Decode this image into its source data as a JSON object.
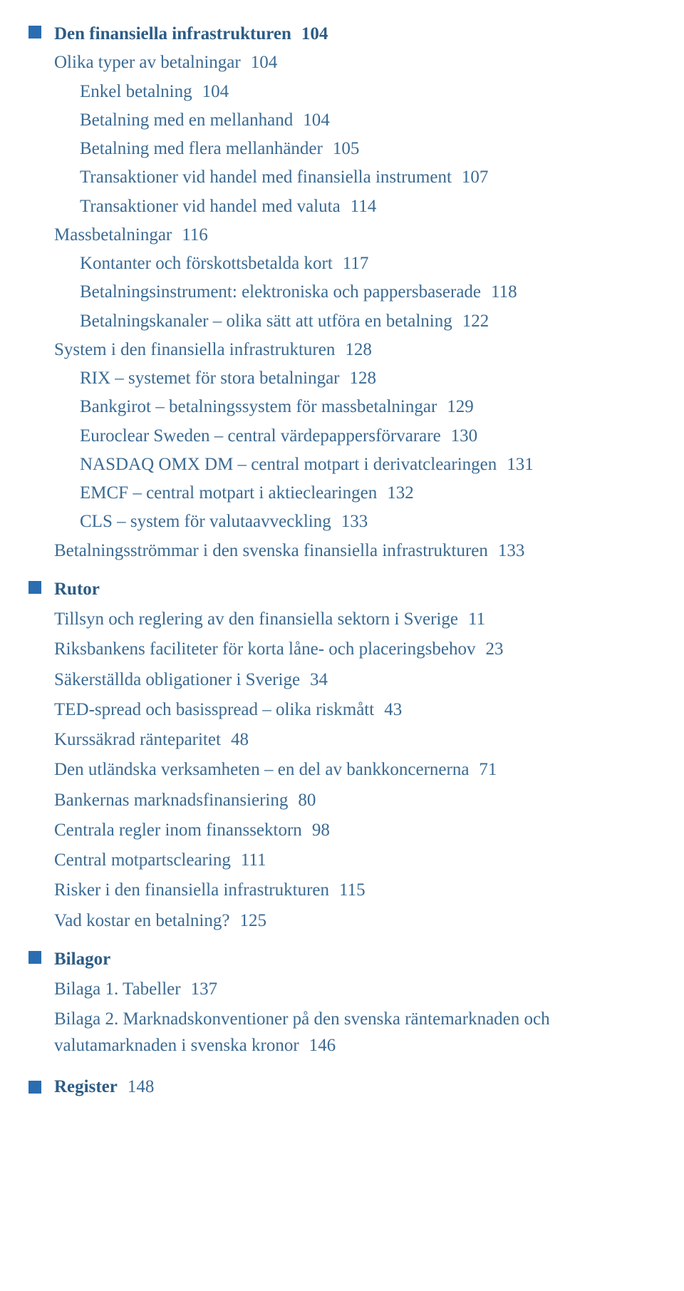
{
  "colors": {
    "text": "#3a6a93",
    "heading": "#2d5c85",
    "bullet": "#2a6db0",
    "background": "#ffffff"
  },
  "typography": {
    "font_family": "Georgia, serif",
    "body_fontsize_pt": 19,
    "heading_fontsize_pt": 19,
    "heading_weight": 600,
    "line_height": 1.45
  },
  "sections": [
    {
      "heading": "Den finansiella infrastrukturen",
      "heading_page": "104",
      "items": [
        {
          "level": 0,
          "text": "Olika typer av betalningar",
          "page": "104"
        },
        {
          "level": 1,
          "text": "Enkel betalning",
          "page": "104"
        },
        {
          "level": 1,
          "text": "Betalning med en mellanhand",
          "page": "104"
        },
        {
          "level": 1,
          "text": "Betalning med flera mellanhänder",
          "page": "105"
        },
        {
          "level": 1,
          "text": "Transaktioner vid handel med finansiella instrument",
          "page": "107"
        },
        {
          "level": 1,
          "text": "Transaktioner vid handel med valuta",
          "page": "114"
        },
        {
          "level": 0,
          "text": "Massbetalningar",
          "page": "116"
        },
        {
          "level": 1,
          "text": "Kontanter och förskottsbetalda kort",
          "page": "117"
        },
        {
          "level": 1,
          "text": "Betalningsinstrument: elektroniska och pappersbaserade",
          "page": "118"
        },
        {
          "level": 1,
          "text": "Betalningskanaler – olika sätt att utföra en betalning",
          "page": "122"
        },
        {
          "level": 0,
          "text": "System i den finansiella infrastrukturen",
          "page": "128"
        },
        {
          "level": 1,
          "text": "RIX – systemet för stora betalningar",
          "page": "128"
        },
        {
          "level": 1,
          "text": "Bankgirot – betalningssystem för massbetalningar",
          "page": "129"
        },
        {
          "level": 1,
          "text": "Euroclear Sweden – central värdepappersförvarare",
          "page": "130"
        },
        {
          "level": 1,
          "text": "NASDAQ OMX DM – central motpart i derivatclearingen",
          "page": "131"
        },
        {
          "level": 1,
          "text": "EMCF – central motpart i aktieclearingen",
          "page": "132"
        },
        {
          "level": 1,
          "text": "CLS – system för valutaavveckling",
          "page": "133"
        },
        {
          "level": 0,
          "text": "Betalningsströmmar i den svenska finansiella infrastrukturen",
          "page": "133"
        }
      ]
    },
    {
      "heading": "Rutor",
      "items": [
        {
          "level": 0,
          "text": "Tillsyn och reglering av den finansiella sektorn i Sverige",
          "page": "11"
        },
        {
          "level": 0,
          "text": "Riksbankens faciliteter för korta låne- och placeringsbehov",
          "page": "23"
        },
        {
          "level": 0,
          "text": "Säkerställda obligationer i Sverige",
          "page": "34"
        },
        {
          "level": 0,
          "text": "TED-spread och basisspread – olika riskmått",
          "page": "43"
        },
        {
          "level": 0,
          "text": "Kurssäkrad ränteparitet",
          "page": "48"
        },
        {
          "level": 0,
          "text": "Den utländska verksamheten – en del av bankkoncernerna",
          "page": "71"
        },
        {
          "level": 0,
          "text": "Bankernas marknadsfinansiering",
          "page": "80"
        },
        {
          "level": 0,
          "text": "Centrala regler inom finanssektorn",
          "page": "98"
        },
        {
          "level": 0,
          "text": "Central motpartsclearing",
          "page": "111"
        },
        {
          "level": 0,
          "text": "Risker i den finansiella infrastrukturen",
          "page": "115"
        },
        {
          "level": 0,
          "text": "Vad kostar en betalning?",
          "page": "125"
        }
      ],
      "spaced": true
    },
    {
      "heading": "Bilagor",
      "items": [
        {
          "level": 0,
          "text": "Bilaga 1. Tabeller",
          "page": "137"
        },
        {
          "level": 0,
          "text": "Bilaga 2. Marknadskonventioner på den svenska räntemarknaden och valutamarknaden i svenska kronor",
          "page": "146"
        }
      ],
      "spaced": true
    }
  ],
  "register": {
    "label": "Register",
    "page": "148"
  }
}
